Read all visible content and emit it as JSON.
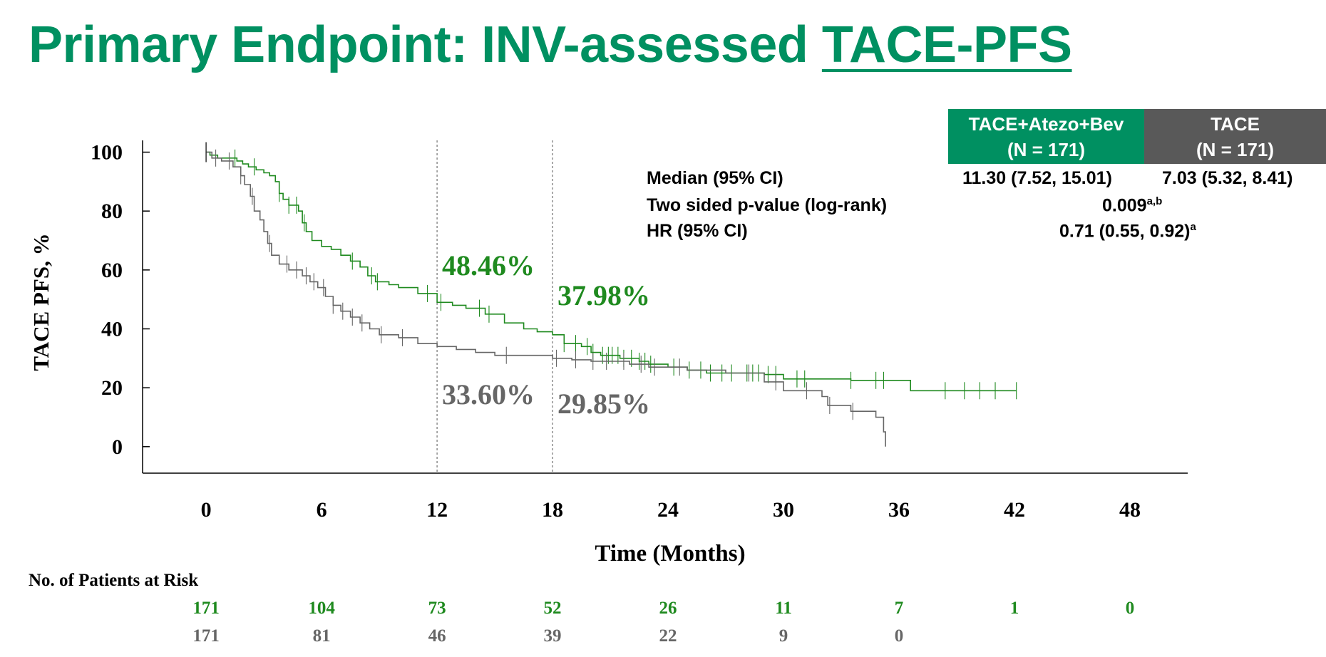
{
  "title_part1": "Primary Endpoint: INV-assessed ",
  "title_part2": "TACE-PFS",
  "colors": {
    "arm": "#1f8a1f",
    "control": "#666666",
    "header_arm": "#009061",
    "header_control": "#595959",
    "title": "#009061"
  },
  "stats": {
    "arm_header_line1": "TACE+Atezo+Bev",
    "arm_header_line2": "(N = 171)",
    "control_header_line1": "TACE",
    "control_header_line2": "(N = 171)",
    "median_label": "Median (95% CI)",
    "median_arm": "11.30 (7.52, 15.01)",
    "median_control": "7.03 (5.32, 8.41)",
    "pvalue_label": "Two sided p-value (log-rank)",
    "pvalue": "0.009",
    "pvalue_sup": "a,b",
    "hr_label": "HR  (95% CI)",
    "hr": "0.71 (0.55, 0.92)",
    "hr_sup": "a"
  },
  "chart_data": {
    "type": "line",
    "xlabel": "Time (Months)",
    "ylabel": "TACE PFS, %",
    "x_ticks": [
      0,
      6,
      12,
      18,
      24,
      30,
      36,
      42,
      48
    ],
    "y_ticks": [
      0,
      20,
      40,
      60,
      80,
      100
    ],
    "xlim": [
      -3.3,
      51
    ],
    "ylim": [
      -9,
      104
    ],
    "reference_lines_x": [
      12,
      18
    ],
    "annotations": [
      {
        "text": "48.46%",
        "series": "arm"
      },
      {
        "text": "37.98%",
        "series": "arm"
      },
      {
        "text": "33.60%",
        "series": "control"
      },
      {
        "text": "29.85%",
        "series": "control"
      }
    ],
    "series": [
      {
        "key": "arm",
        "points": [
          [
            0,
            100
          ],
          [
            0.2,
            99
          ],
          [
            0.6,
            98
          ],
          [
            1.2,
            98
          ],
          [
            1.6,
            97
          ],
          [
            1.9,
            96
          ],
          [
            2.2,
            95
          ],
          [
            2.6,
            94
          ],
          [
            3,
            93
          ],
          [
            3.3,
            92
          ],
          [
            3.6,
            90
          ],
          [
            3.8,
            86
          ],
          [
            4,
            84
          ],
          [
            4.3,
            82
          ],
          [
            4.8,
            80
          ],
          [
            5,
            76
          ],
          [
            5.2,
            73
          ],
          [
            5.5,
            70
          ],
          [
            6,
            68
          ],
          [
            6.5,
            67
          ],
          [
            7,
            65
          ],
          [
            7.5,
            63
          ],
          [
            8,
            61
          ],
          [
            8.4,
            58
          ],
          [
            8.8,
            56
          ],
          [
            9.5,
            55
          ],
          [
            10,
            54
          ],
          [
            11,
            52
          ],
          [
            12,
            49
          ],
          [
            12.8,
            48
          ],
          [
            13.5,
            47
          ],
          [
            14.5,
            45
          ],
          [
            15.5,
            42
          ],
          [
            16.5,
            40
          ],
          [
            17.2,
            39
          ],
          [
            18,
            38
          ],
          [
            18.6,
            35
          ],
          [
            19.5,
            34
          ],
          [
            20,
            32
          ],
          [
            20.5,
            31
          ],
          [
            21.5,
            30
          ],
          [
            22.5,
            29
          ],
          [
            23,
            28
          ],
          [
            24,
            27
          ],
          [
            25,
            26
          ],
          [
            26,
            25
          ],
          [
            27,
            25
          ],
          [
            29,
            24.5
          ],
          [
            30,
            23
          ],
          [
            32,
            23
          ],
          [
            33.5,
            22.5
          ],
          [
            36.5,
            22.5
          ],
          [
            36.6,
            19
          ],
          [
            40,
            19
          ],
          [
            42.1,
            19
          ]
        ],
        "censor_x": [
          1.5,
          2.5,
          3.8,
          4.3,
          4.7,
          5.1,
          7.6,
          8.6,
          8.9,
          11.5,
          12.2,
          14.2,
          14.7,
          18.6,
          19.2,
          19.8,
          20.1,
          20.6,
          20.9,
          21.1,
          21.4,
          21.7,
          22.1,
          22.5,
          22.8,
          23.1,
          24.3,
          25.1,
          25.7,
          26.2,
          26.8,
          27.3,
          28.1,
          28.4,
          28.7,
          29.2,
          29.6,
          30.7,
          31.1,
          33.5,
          34.8,
          35.2,
          38.4,
          39.4,
          40.2,
          41.0,
          42.1
        ]
      },
      {
        "key": "control",
        "points": [
          [
            0,
            100
          ],
          [
            0.3,
            98
          ],
          [
            0.8,
            97
          ],
          [
            1.4,
            95
          ],
          [
            1.8,
            92
          ],
          [
            2,
            89
          ],
          [
            2.3,
            85
          ],
          [
            2.5,
            80
          ],
          [
            2.8,
            77
          ],
          [
            3,
            73
          ],
          [
            3.2,
            69
          ],
          [
            3.4,
            65
          ],
          [
            3.8,
            62
          ],
          [
            4.3,
            60
          ],
          [
            5,
            58
          ],
          [
            5.4,
            56
          ],
          [
            5.8,
            54
          ],
          [
            6.2,
            51
          ],
          [
            6.6,
            48
          ],
          [
            7,
            46
          ],
          [
            7.5,
            44
          ],
          [
            8,
            42
          ],
          [
            8.5,
            40
          ],
          [
            9,
            38
          ],
          [
            10,
            37
          ],
          [
            11,
            35
          ],
          [
            12,
            34
          ],
          [
            13,
            33
          ],
          [
            14,
            32
          ],
          [
            15,
            31
          ],
          [
            17,
            31
          ],
          [
            18,
            30
          ],
          [
            19,
            29.5
          ],
          [
            20,
            29
          ],
          [
            22,
            28
          ],
          [
            23,
            27
          ],
          [
            25,
            26
          ],
          [
            27,
            25
          ],
          [
            29,
            22
          ],
          [
            30,
            19
          ],
          [
            31,
            19
          ],
          [
            32,
            17
          ],
          [
            32.3,
            14
          ],
          [
            33,
            14
          ],
          [
            33.5,
            12
          ],
          [
            34,
            12
          ],
          [
            34.8,
            10
          ],
          [
            35.2,
            5
          ],
          [
            35.3,
            0
          ]
        ],
        "censor_x": [
          0.5,
          1.2,
          1.8,
          2.4,
          3.3,
          4.2,
          4.7,
          5.2,
          5.6,
          6.1,
          6.6,
          7.1,
          7.6,
          8.1,
          9.1,
          10.2,
          15.6,
          18.2,
          19.2,
          20.1,
          20.8,
          21.7,
          22.6,
          23.3,
          24.6,
          28.2,
          29.6,
          31.2,
          32.4,
          33.6
        ]
      }
    ]
  },
  "risk_table": {
    "label": "No. of Patients at Risk",
    "arm": [
      "171",
      "104",
      "73",
      "52",
      "26",
      "11",
      "7",
      "1",
      "0"
    ],
    "control": [
      "171",
      "81",
      "46",
      "39",
      "22",
      "9",
      "0"
    ]
  }
}
